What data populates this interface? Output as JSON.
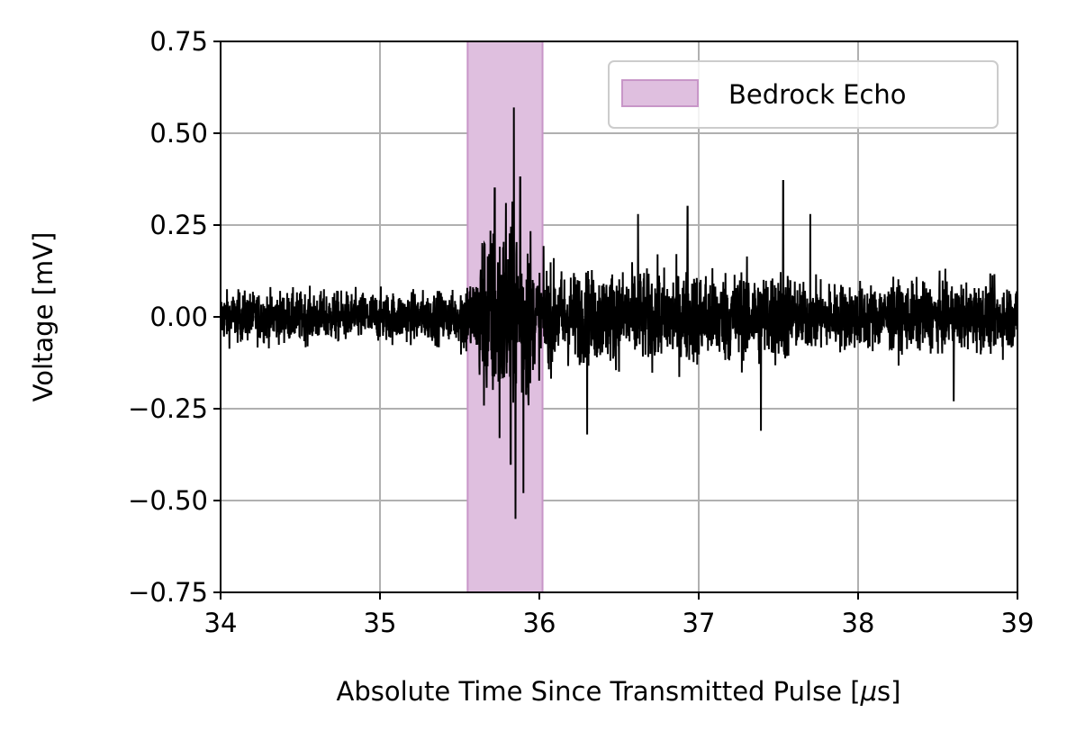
{
  "chart_data": {
    "type": "line",
    "title": "",
    "xlabel_text": "Absolute Time Since Transmitted Pulse [",
    "xlabel_unit_symbol": "μ",
    "xlabel_unit_rest": "s]",
    "ylabel": "Voltage [mV]",
    "xlim": [
      34,
      39
    ],
    "ylim": [
      -0.75,
      0.75
    ],
    "xticks": [
      34,
      35,
      36,
      37,
      38,
      39
    ],
    "xtick_labels": [
      "34",
      "35",
      "36",
      "37",
      "38",
      "39"
    ],
    "yticks": [
      0.75,
      0.5,
      0.25,
      0.0,
      -0.25,
      -0.5,
      -0.75
    ],
    "ytick_labels": [
      "0.75",
      "0.50",
      "0.25",
      "0.00",
      "−0.25",
      "−0.50",
      "−0.75"
    ],
    "grid": true,
    "legend_position": "top-right",
    "shaded_region": {
      "label": "Bedrock Echo",
      "x_start": 35.55,
      "x_end": 36.02,
      "color": "#dfbfdf",
      "edge_color": "#c896c8"
    },
    "series": [
      {
        "line_color": "#000000",
        "segments": [
          {
            "x_start": 34.0,
            "x_end": 35.5,
            "amplitude": 0.06
          },
          {
            "x_start": 35.5,
            "x_end": 35.62,
            "amplitude": 0.1
          },
          {
            "x_start": 35.62,
            "x_end": 35.95,
            "amplitude": 0.22
          },
          {
            "x_start": 35.95,
            "x_end": 36.1,
            "amplitude": 0.12
          },
          {
            "x_start": 36.1,
            "x_end": 37.6,
            "amplitude": 0.11
          },
          {
            "x_start": 37.6,
            "x_end": 39.0,
            "amplitude": 0.08
          }
        ],
        "peaks": [
          {
            "x": 35.72,
            "y": 0.35
          },
          {
            "x": 35.75,
            "y": -0.33
          },
          {
            "x": 35.79,
            "y": 0.31
          },
          {
            "x": 35.82,
            "y": -0.4
          },
          {
            "x": 35.84,
            "y": 0.57
          },
          {
            "x": 35.85,
            "y": -0.55
          },
          {
            "x": 35.88,
            "y": 0.38
          },
          {
            "x": 35.9,
            "y": -0.48
          },
          {
            "x": 36.3,
            "y": -0.32
          },
          {
            "x": 36.62,
            "y": 0.28
          },
          {
            "x": 36.93,
            "y": 0.3
          },
          {
            "x": 37.39,
            "y": -0.31
          },
          {
            "x": 37.53,
            "y": 0.37
          },
          {
            "x": 37.7,
            "y": 0.28
          },
          {
            "x": 38.6,
            "y": -0.23
          }
        ]
      }
    ]
  }
}
